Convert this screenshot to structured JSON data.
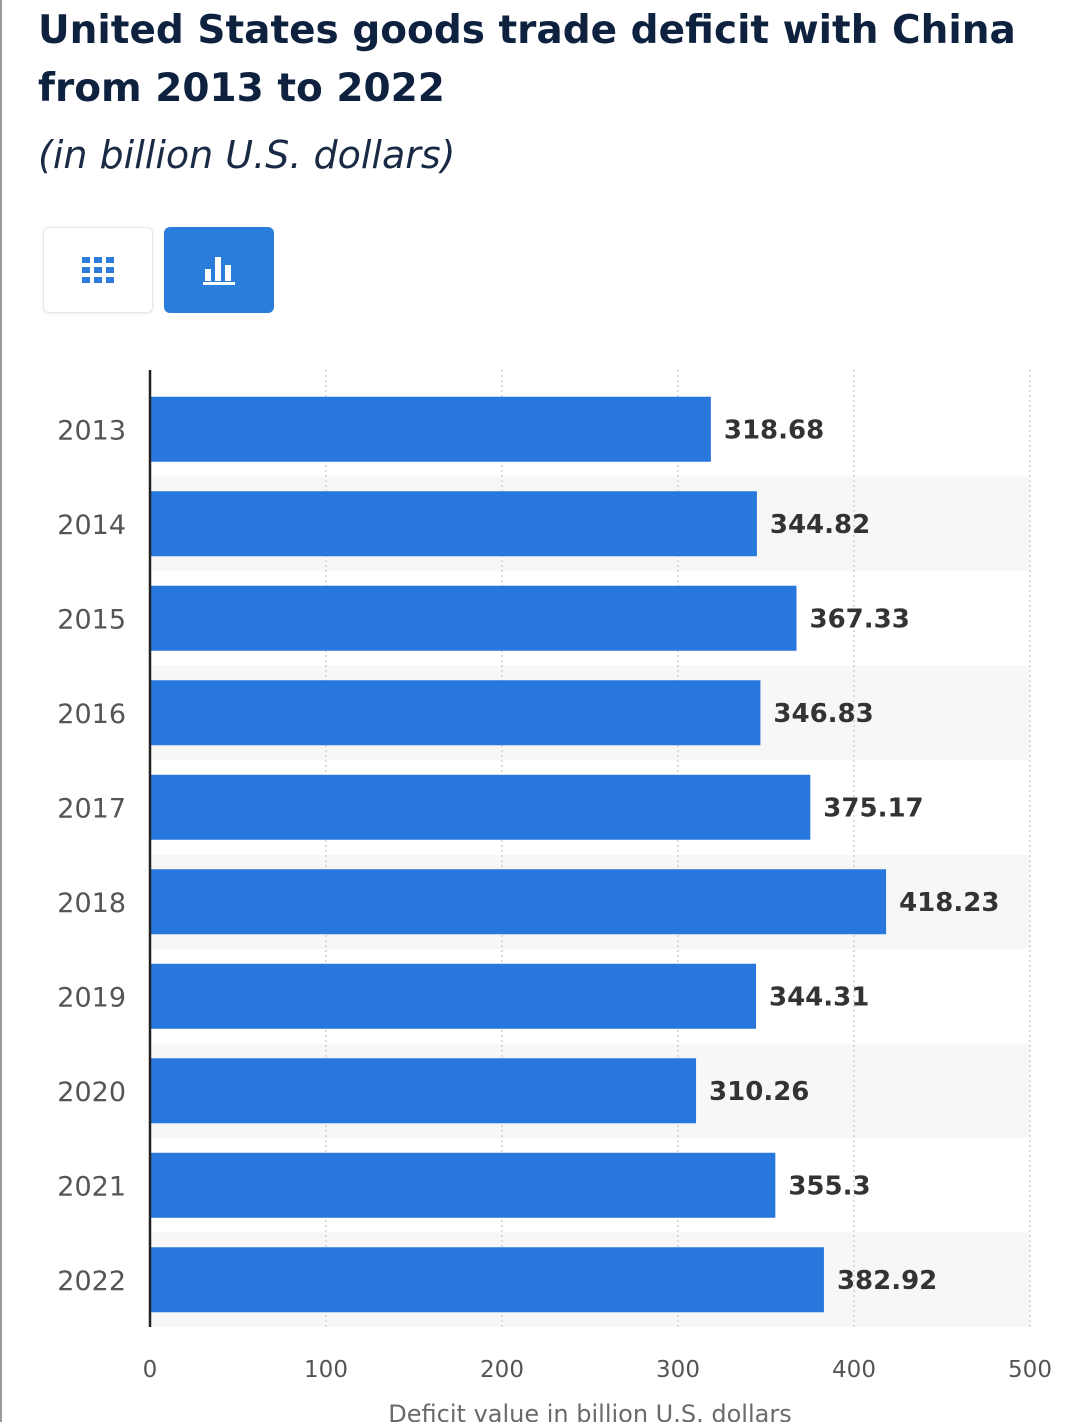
{
  "header": {
    "title": "United States goods trade deficit with China from 2013 to 2022",
    "subtitle": "(in billion U.S. dollars)"
  },
  "toolbar": {
    "table_view_icon": "grid-icon",
    "chart_view_icon": "bar-chart-icon",
    "active_view": "chart"
  },
  "colors": {
    "bar": "#2777dd",
    "accent": "#2b7ddc",
    "title": "#0e2240"
  },
  "chart_data": {
    "type": "bar",
    "orientation": "horizontal",
    "categories": [
      "2013",
      "2014",
      "2015",
      "2016",
      "2017",
      "2018",
      "2019",
      "2020",
      "2021",
      "2022"
    ],
    "values": [
      318.68,
      344.82,
      367.33,
      346.83,
      375.17,
      418.23,
      344.31,
      310.26,
      355.3,
      382.92
    ],
    "value_labels": [
      "318.68",
      "344.82",
      "367.33",
      "346.83",
      "375.17",
      "418.23",
      "344.31",
      "310.26",
      "355.3",
      "382.92"
    ],
    "xlabel": "Deficit value in billion U.S. dollars",
    "xlim": [
      0,
      500
    ],
    "xticks": [
      "0",
      "100",
      "200",
      "300",
      "400",
      "500"
    ],
    "grid": true,
    "alternating_row_shading": true
  }
}
